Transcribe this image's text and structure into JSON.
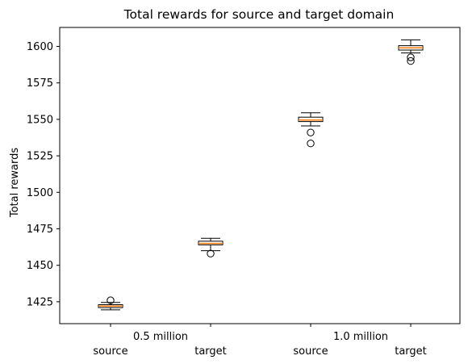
{
  "chart_data": {
    "type": "box",
    "title": "Total rewards for source and target domain",
    "xlabel": "",
    "ylabel": "Total rewards",
    "ylim": [
      1410,
      1613
    ],
    "yticks": [
      1425,
      1450,
      1475,
      1500,
      1525,
      1550,
      1575,
      1600
    ],
    "groups": [
      "0.5 million",
      "1.0 million"
    ],
    "categories": [
      "source",
      "target",
      "source",
      "target"
    ],
    "boxes": [
      {
        "label": "source",
        "group": "0.5 million",
        "whisker_low": 1419.5,
        "q1": 1421,
        "median": 1422,
        "q3": 1423,
        "whisker_high": 1424.5,
        "outliers": [
          1426
        ]
      },
      {
        "label": "target",
        "group": "0.5 million",
        "whisker_low": 1460,
        "q1": 1464,
        "median": 1465,
        "q3": 1466.5,
        "whisker_high": 1468.5,
        "outliers": [
          1458
        ]
      },
      {
        "label": "source",
        "group": "1.0 million",
        "whisker_low": 1545.5,
        "q1": 1548.5,
        "median": 1549.5,
        "q3": 1551.5,
        "whisker_high": 1554.5,
        "outliers": [
          1541,
          1533.5
        ]
      },
      {
        "label": "target",
        "group": "1.0 million",
        "whisker_low": 1595.5,
        "q1": 1597.5,
        "median": 1599,
        "q3": 1600.5,
        "whisker_high": 1604.5,
        "outliers": [
          1592.5,
          1590
        ]
      }
    ],
    "grid": false,
    "colors": {
      "median": "#ff7f0e",
      "box": "#000000"
    }
  }
}
